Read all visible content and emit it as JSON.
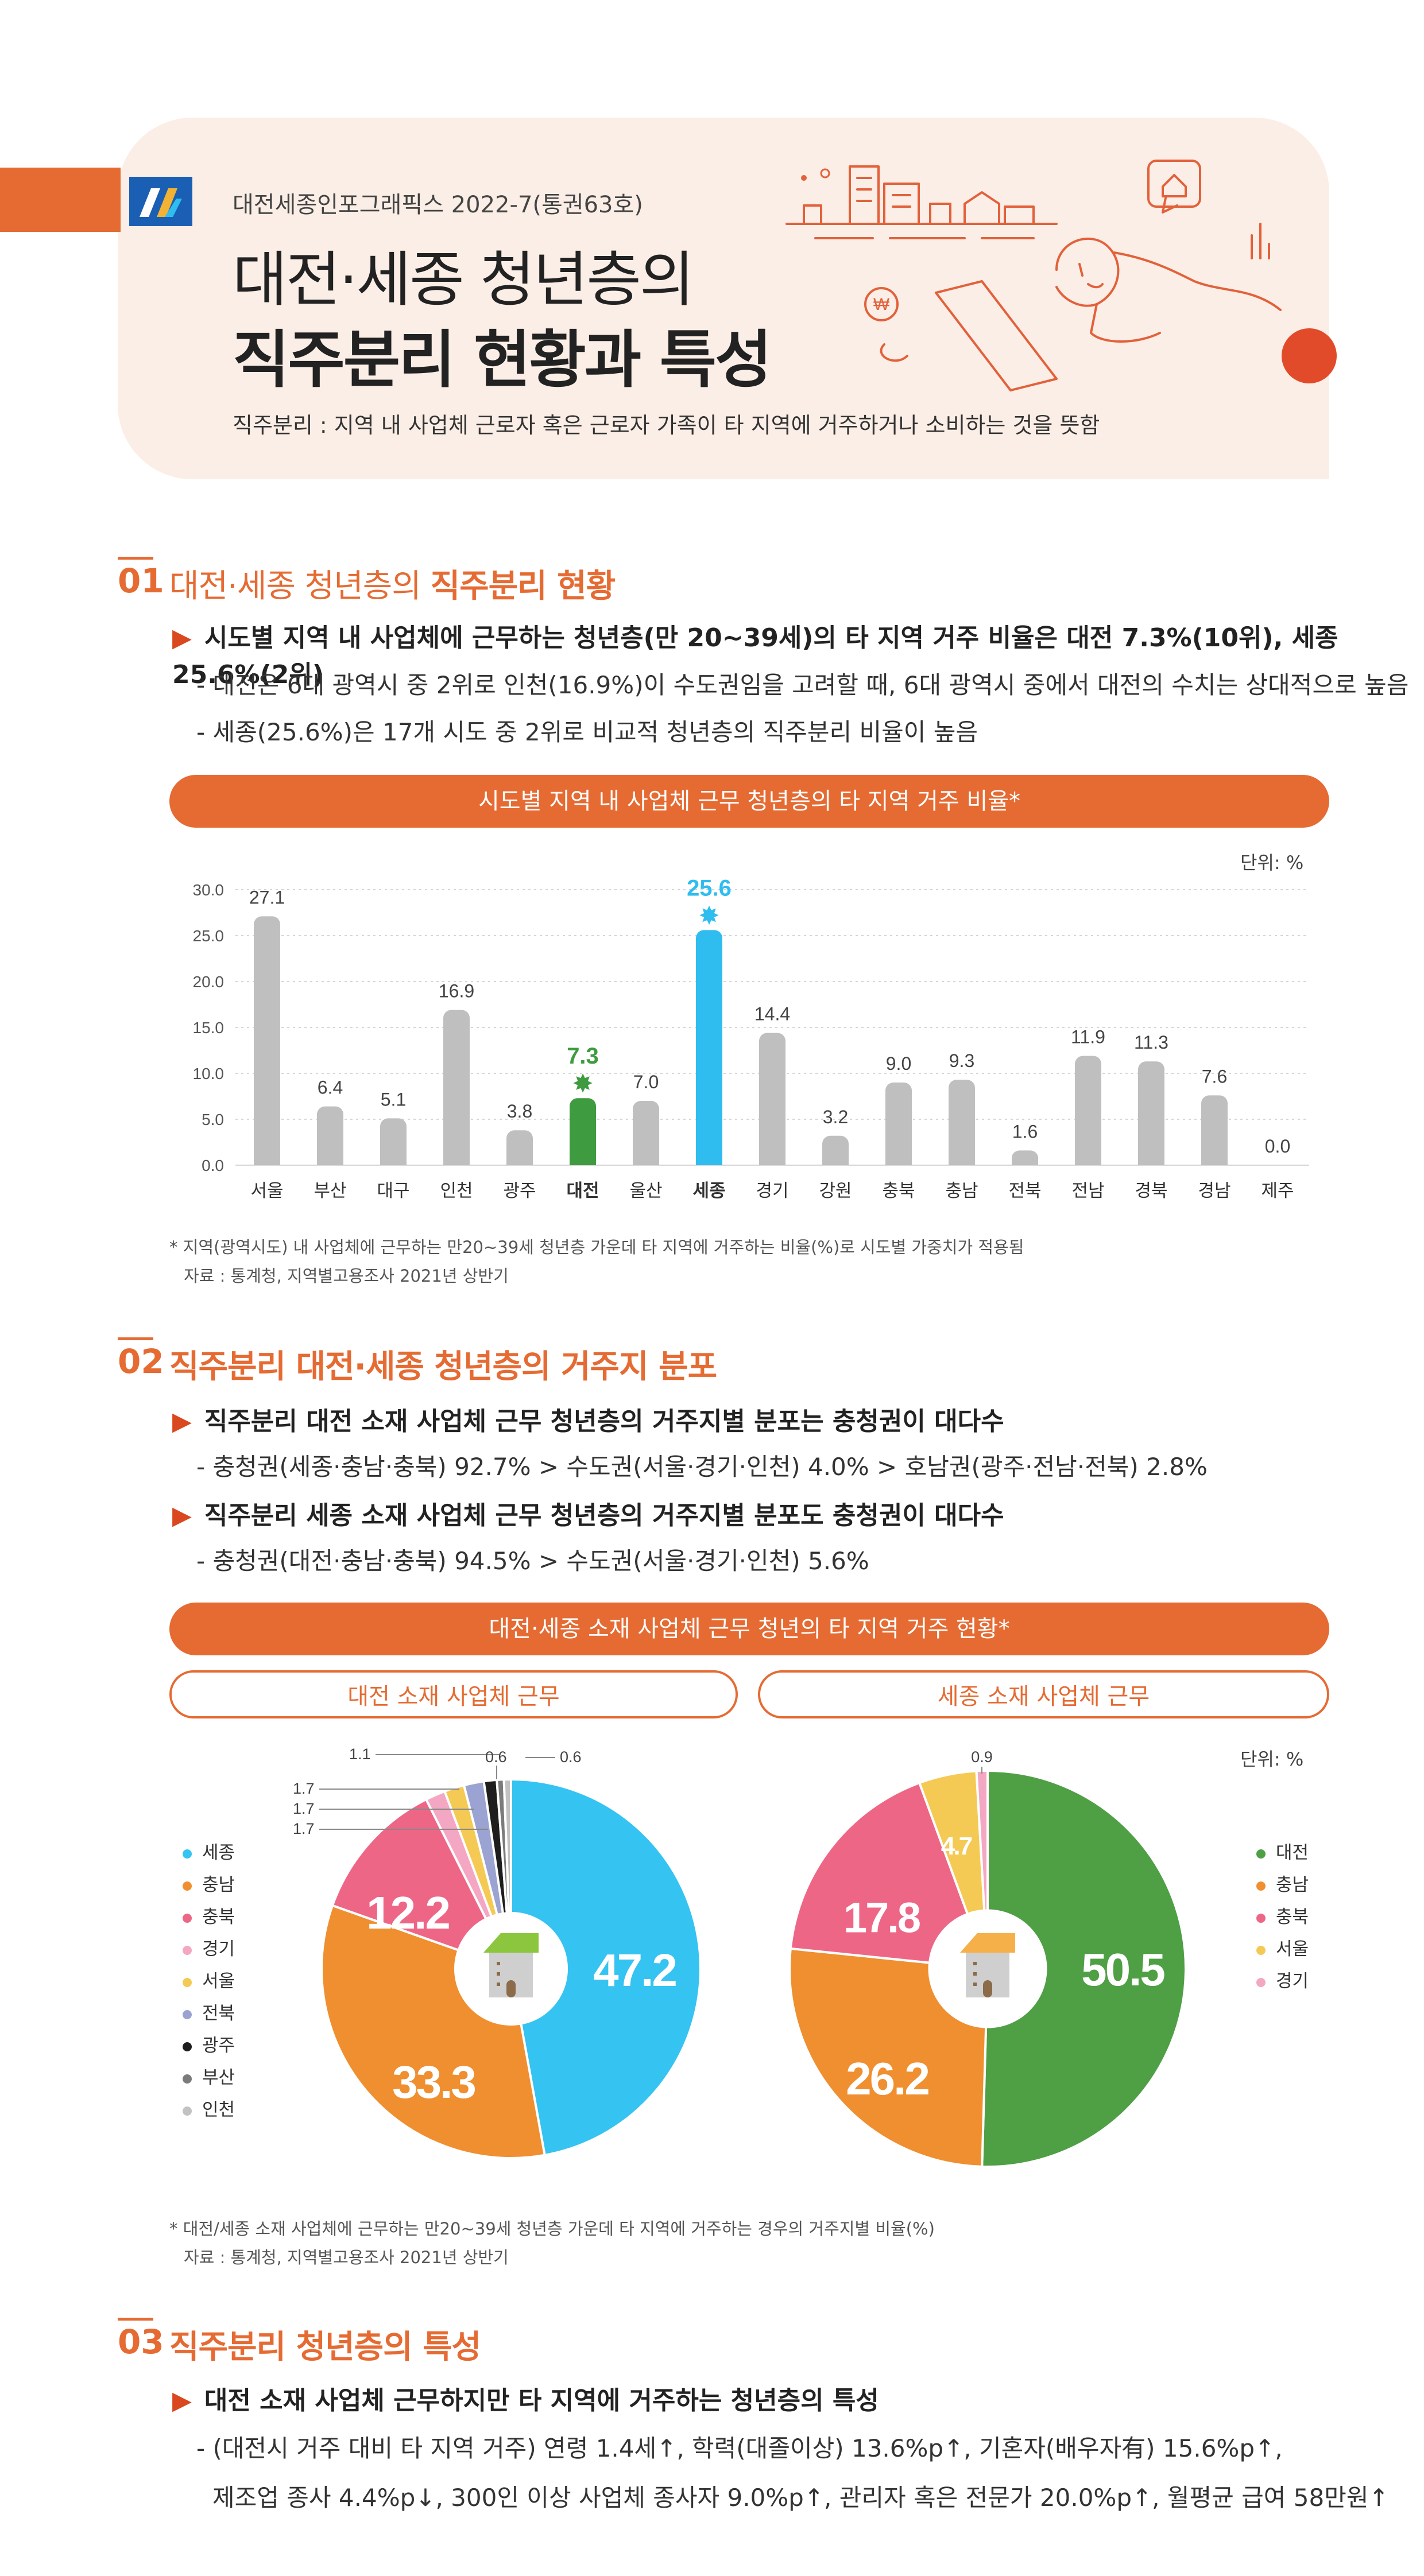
{
  "header": {
    "publisher": "대전세종인포그래픽스 2022-7(통권63호)",
    "title_line1": "대전·세종 청년층의",
    "title_line2": "직주분리 현황과 특성",
    "definition": "직주분리 : 지역 내 사업체 근로자 혹은 근로자 가족이 타 지역에 거주하거나 소비하는 것을 뜻함"
  },
  "section1": {
    "num": "01",
    "title_plain": "대전·세종 청년층의 ",
    "title_bold": "직주분리 현황",
    "bullet": "시도별 지역 내 사업체에 근무하는 청년층(만 20~39세)의 타 지역 거주 비율은 대전 7.3%(10위), 세종 25.6%(2위)",
    "dash1": "- 대전은 6대 광역시 중 2위로 인천(16.9%)이 수도권임을 고려할 때, 6대 광역시 중에서 대전의 수치는 상대적으로 높음",
    "dash2": "- 세종(25.6%)은 17개 시도 중 2위로 비교적 청년층의 직주분리 비율이 높음",
    "chart_pill": "시도별 지역 내 사업체 근무 청년층의 타 지역 거주 비율*",
    "unit": "단위: %",
    "note1": "* 지역(광역시도) 내 사업체에 근무하는 만20~39세 청년층 가운데 타 지역에 거주하는 비율(%)로 시도별 가중치가 적용됨",
    "note2": "자료 : 통계청, 지역별고용조사 2021년 상반기"
  },
  "section2": {
    "num": "02",
    "title": "직주분리 대전·세종 청년층의 거주지 분포",
    "bullet1": "직주분리 대전 소재 사업체 근무 청년층의 거주지별 분포는 충청권이 대다수",
    "dash1": "- 충청권(세종·충남·충북) 92.7% > 수도권(서울·경기·인천) 4.0% > 호남권(광주·전남·전북) 2.8%",
    "bullet2": "직주분리 세종 소재 사업체 근무 청년층의 거주지별 분포도 충청권이 대다수",
    "dash2": "- 충청권(대전·충남·충북) 94.5% > 수도권(서울·경기·인천) 5.6%",
    "chart_pill": "대전·세종 소재 사업체 근무 청년의 타 지역 거주 현황*",
    "left_pill": "대전 소재 사업체 근무",
    "right_pill": "세종 소재 사업체 근무",
    "unit": "단위: %",
    "note1": "* 대전/세종 소재 사업체에 근무하는 만20~39세 청년층 가운데 타 지역에 거주하는 경우의 거주지별 비율(%)",
    "note2": "자료 : 통계청, 지역별고용조사 2021년 상반기"
  },
  "section3": {
    "num": "03",
    "title": "직주분리 청년층의 특성",
    "bullet": "대전 소재 사업체 근무하지만 타 지역에 거주하는 청년층의 특성",
    "dash1": "- (대전시 거주 대비 타 지역 거주) 연령 1.4세↑, 학력(대졸이상) 13.6%p↑, 기혼자(배우자有) 15.6%p↑,",
    "dash2": "제조업 종사 4.4%p↓, 300인 이상 사업체 종사자 9.0%p↑, 관리자 혹은 전문가 20.0%p↑, 월평균 급여 58만원↑"
  },
  "colors": {
    "accent": "#e56b33",
    "bar_gray": "#bfbfbf",
    "daejeon_green": "#3f9b40",
    "sejong_blue": "#2fbdf0",
    "pie_sejong": "#35c3f2",
    "pie_chungnam": "#ef8f2f",
    "pie_chungbuk": "#ee6686",
    "pie_gyeonggi": "#f4a7c3",
    "pie_seoul": "#f4ca55",
    "pie_jeonbuk": "#9aa3d1",
    "pie_gwangju": "#1e1e1e",
    "pie_busan": "#7b7b7b",
    "pie_incheon": "#c2c2c2",
    "pie_daejeon": "#4f9f45"
  },
  "chart_data": [
    {
      "type": "bar",
      "title": "시도별 지역 내 사업체 근무 청년층의 타 지역 거주 비율*",
      "categories": [
        "서울",
        "부산",
        "대구",
        "인천",
        "광주",
        "대전",
        "울산",
        "세종",
        "경기",
        "강원",
        "충북",
        "충남",
        "전북",
        "전남",
        "경북",
        "경남",
        "제주"
      ],
      "values": [
        27.1,
        6.4,
        5.1,
        16.9,
        3.8,
        7.3,
        7.0,
        25.6,
        14.4,
        3.2,
        9.0,
        9.3,
        1.6,
        11.9,
        11.3,
        7.6,
        0.0
      ],
      "value_labels": [
        "27.1",
        "6.4",
        "5.1",
        "16.9",
        "3.8",
        "7.3",
        "7.0",
        "25.6",
        "14.4",
        "3.2",
        "9.0",
        "9.3",
        "1.6",
        "11.9",
        "11.3",
        "7.6",
        "0.0"
      ],
      "highlight": {
        "대전": "#3f9b40",
        "세종": "#2fbdf0"
      },
      "yticks": [
        "0.0",
        "5.0",
        "10.0",
        "15.0",
        "20.0",
        "25.0",
        "30.0"
      ],
      "ylim": [
        0,
        30
      ],
      "unit": "단위: %",
      "grid": true
    },
    {
      "type": "pie",
      "title": "대전 소재 사업체 근무",
      "slices": [
        {
          "label": "세종",
          "value": 47.2,
          "text": "47.2",
          "color": "#35c3f2"
        },
        {
          "label": "충남",
          "value": 33.3,
          "text": "33.3",
          "color": "#ef8f2f"
        },
        {
          "label": "충북",
          "value": 12.2,
          "text": "12.2",
          "color": "#ee6686"
        },
        {
          "label": "경기",
          "value": 1.7,
          "text": "1.7",
          "color": "#f4a7c3"
        },
        {
          "label": "서울",
          "value": 1.7,
          "text": "1.7",
          "color": "#f4ca55"
        },
        {
          "label": "전북",
          "value": 1.7,
          "text": "1.7",
          "color": "#9aa3d1"
        },
        {
          "label": "광주",
          "value": 1.1,
          "text": "1.1",
          "color": "#1e1e1e"
        },
        {
          "label": "부산",
          "value": 0.6,
          "text": "0.6",
          "color": "#7b7b7b"
        },
        {
          "label": "인천",
          "value": 0.6,
          "text": "0.6",
          "color": "#c2c2c2"
        }
      ],
      "legend": [
        "세종",
        "충남",
        "충북",
        "경기",
        "서울",
        "전북",
        "광주",
        "부산",
        "인천"
      ],
      "legend_position": "left"
    },
    {
      "type": "pie",
      "title": "세종 소재 사업체 근무",
      "slices": [
        {
          "label": "대전",
          "value": 50.5,
          "text": "50.5",
          "color": "#4f9f45"
        },
        {
          "label": "충남",
          "value": 26.2,
          "text": "26.2",
          "color": "#ef8f2f"
        },
        {
          "label": "충북",
          "value": 17.8,
          "text": "17.8",
          "color": "#ee6686"
        },
        {
          "label": "서울",
          "value": 4.7,
          "text": "4.7",
          "color": "#f4ca55"
        },
        {
          "label": "경기",
          "value": 0.9,
          "text": "0.9",
          "color": "#f4a7c3"
        }
      ],
      "legend": [
        "대전",
        "충남",
        "충북",
        "서울",
        "경기"
      ],
      "legend_position": "right"
    }
  ]
}
